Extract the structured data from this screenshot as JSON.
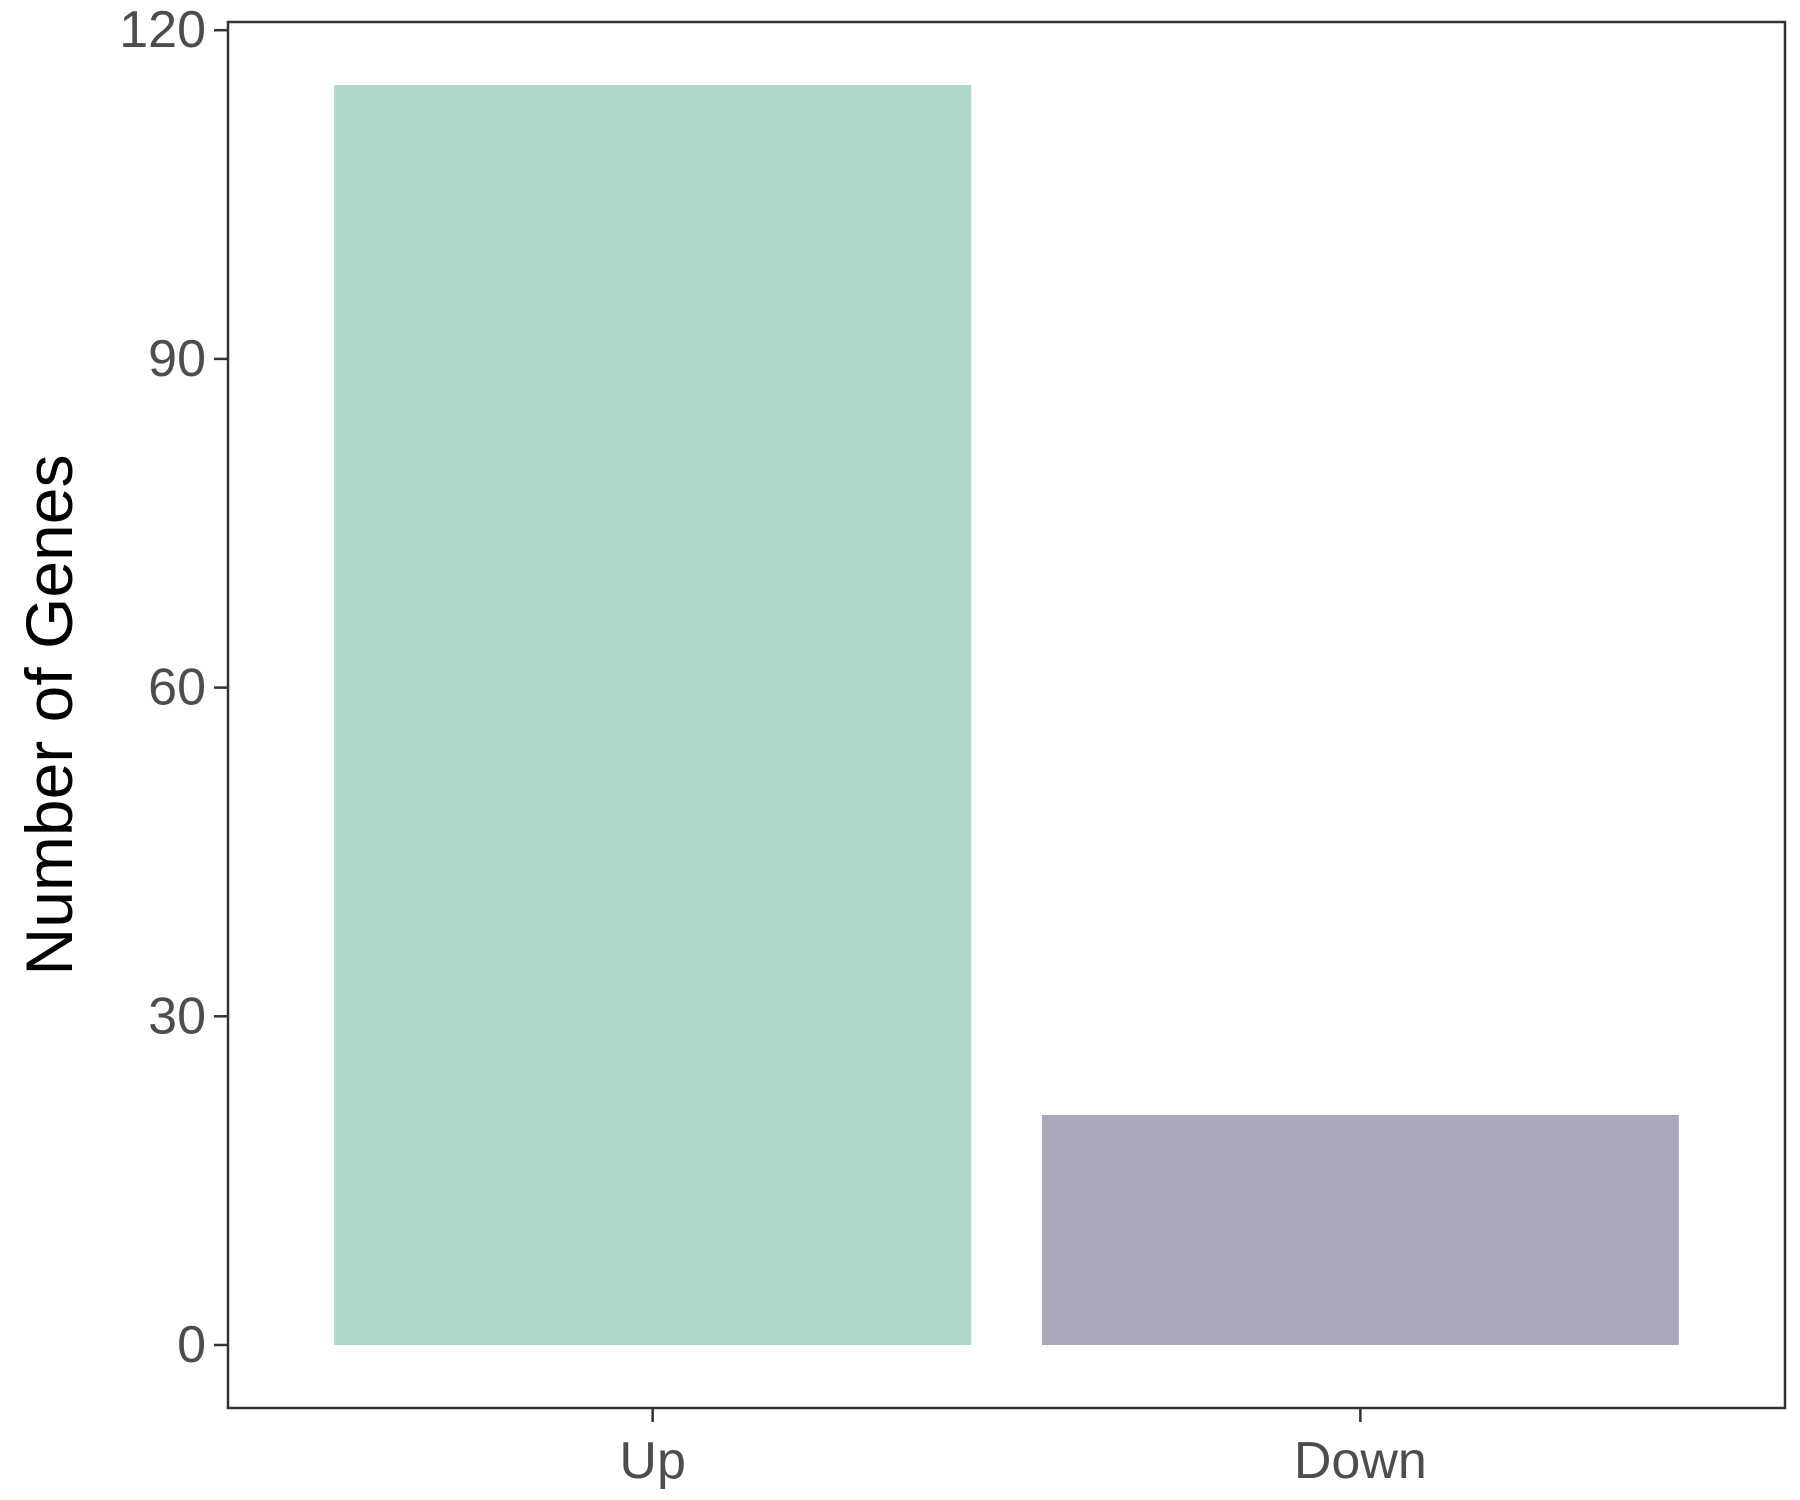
{
  "chart_data": {
    "type": "bar",
    "title": "",
    "xlabel": "",
    "ylabel": "Number of Genes",
    "categories": [
      "Up",
      "Down"
    ],
    "values": [
      115,
      21
    ],
    "colors": [
      "#aed8cb",
      "#aaa7bb"
    ],
    "ylim": [
      -5.75,
      120.75
    ],
    "yticks": [
      0,
      30,
      60,
      90,
      120
    ],
    "ytick_labels": [
      "0",
      "30",
      "60",
      "90",
      "120"
    ],
    "grid": false,
    "legend": "none",
    "frame_color": "#333333",
    "tick_label_color": "#4d4d4d"
  }
}
